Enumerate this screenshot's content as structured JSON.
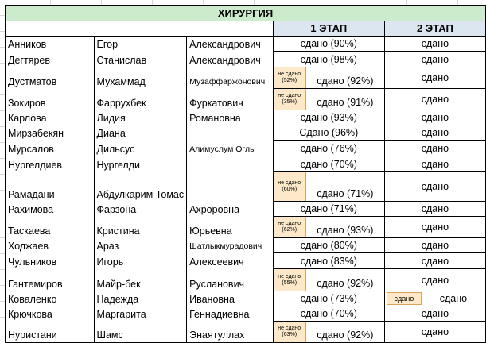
{
  "title": "ХИРУРГИЯ",
  "stage1_label": "1 ЭТАП",
  "stage2_label": "2 ЭТАП",
  "rows": [
    {
      "last": "Анников",
      "first": "Егор",
      "patr": "Александрович",
      "s1": "сдано (90%)",
      "s2": "сдано"
    },
    {
      "last": "Дегтярев",
      "first": "Станислав",
      "patr": "Александрович",
      "s1": "сдано (98%)",
      "s2": "сдано"
    },
    {
      "last": "Дустматов",
      "first": "Мухаммад",
      "patr": "Музаффаржонович",
      "s1_fail_label": "не сдано",
      "s1_fail_pct": "(52%)",
      "s1": "сдано (92%)",
      "s2": "сдано"
    },
    {
      "last": "Зокиров",
      "first": "Фаррухбек",
      "patr": "Фуркатович",
      "s1_fail_label": "не сдано",
      "s1_fail_pct": "(35%)",
      "s1": "сдано (91%)",
      "s2": "сдано"
    },
    {
      "last": "Карлова",
      "first": "Лидия",
      "patr": "Романовна",
      "s1": "сдано (93%)",
      "s2": "сдано"
    },
    {
      "last": "Мирзабекян",
      "first": "Диана",
      "patr": "",
      "s1": "Сдано (96%)",
      "s2": "сдано"
    },
    {
      "last": "Мурсалов",
      "first": "Дильсус",
      "patr": "Алимуслум Оглы",
      "s1": "сдано (76%)",
      "s2": "сдано"
    },
    {
      "last": "Нургелдиев",
      "first": "Нургелди",
      "patr": "",
      "s1": "сдано (70%)",
      "s2": "сдано"
    },
    {
      "last": "Рамадани",
      "first": "Абдулкарим Томас",
      "patr": "",
      "s1_fail_label": "не сдано",
      "s1_fail_pct": "(60%)",
      "s1": "сдано (71%)",
      "s2": "сдано"
    },
    {
      "last": "Рахимова",
      "first": "Фарзона",
      "patr": "Ахроровна",
      "s1": "сдано (71%)",
      "s2": "сдано"
    },
    {
      "last": "Таскаева",
      "first": "Кристина",
      "patr": "Юрьевна",
      "s1_fail_label": "не сдано",
      "s1_fail_pct": "(62%)",
      "s1": "сдано (93%)",
      "s2": "сдано"
    },
    {
      "last": "Ходжаев",
      "first": "Араз",
      "patr": "Шатлыкмурадович",
      "s1": "сдано (80%)",
      "s2": "сдано"
    },
    {
      "last": "Чульников",
      "first": "Игорь",
      "patr": "Алексеевич",
      "s1": "сдано (83%)",
      "s2": "сдано"
    },
    {
      "last": "Гантемиров",
      "first": "Майр-бек",
      "patr": "Русланович",
      "s1_fail_label": "не сдано",
      "s1_fail_pct": "(55%)",
      "s1": "сдано (92%)",
      "s2": "сдано"
    },
    {
      "last": "Коваленко",
      "first": "Надежда",
      "patr": "Ивановна",
      "s1": "сдано (73%)",
      "s2_badge": "сдано",
      "s2": "сдано"
    },
    {
      "last": "Крючкова",
      "first": "Маргарита",
      "patr": "Геннадиевна",
      "s1": "сдано (70%)",
      "s2": "сдано"
    },
    {
      "last": "Нуристани",
      "first": "Шамс",
      "patr": "Энаятуллах",
      "s1_fail_label": "не сдано",
      "s1_fail_pct": "(63%)",
      "s1": "сдано (92%)",
      "s2": "сдано"
    }
  ],
  "colors": {
    "title_bg": "#ccebcc",
    "stage_bg": "#dce6f1",
    "fail_bg": "#fde9c9",
    "grid": "#d9d9d9"
  }
}
